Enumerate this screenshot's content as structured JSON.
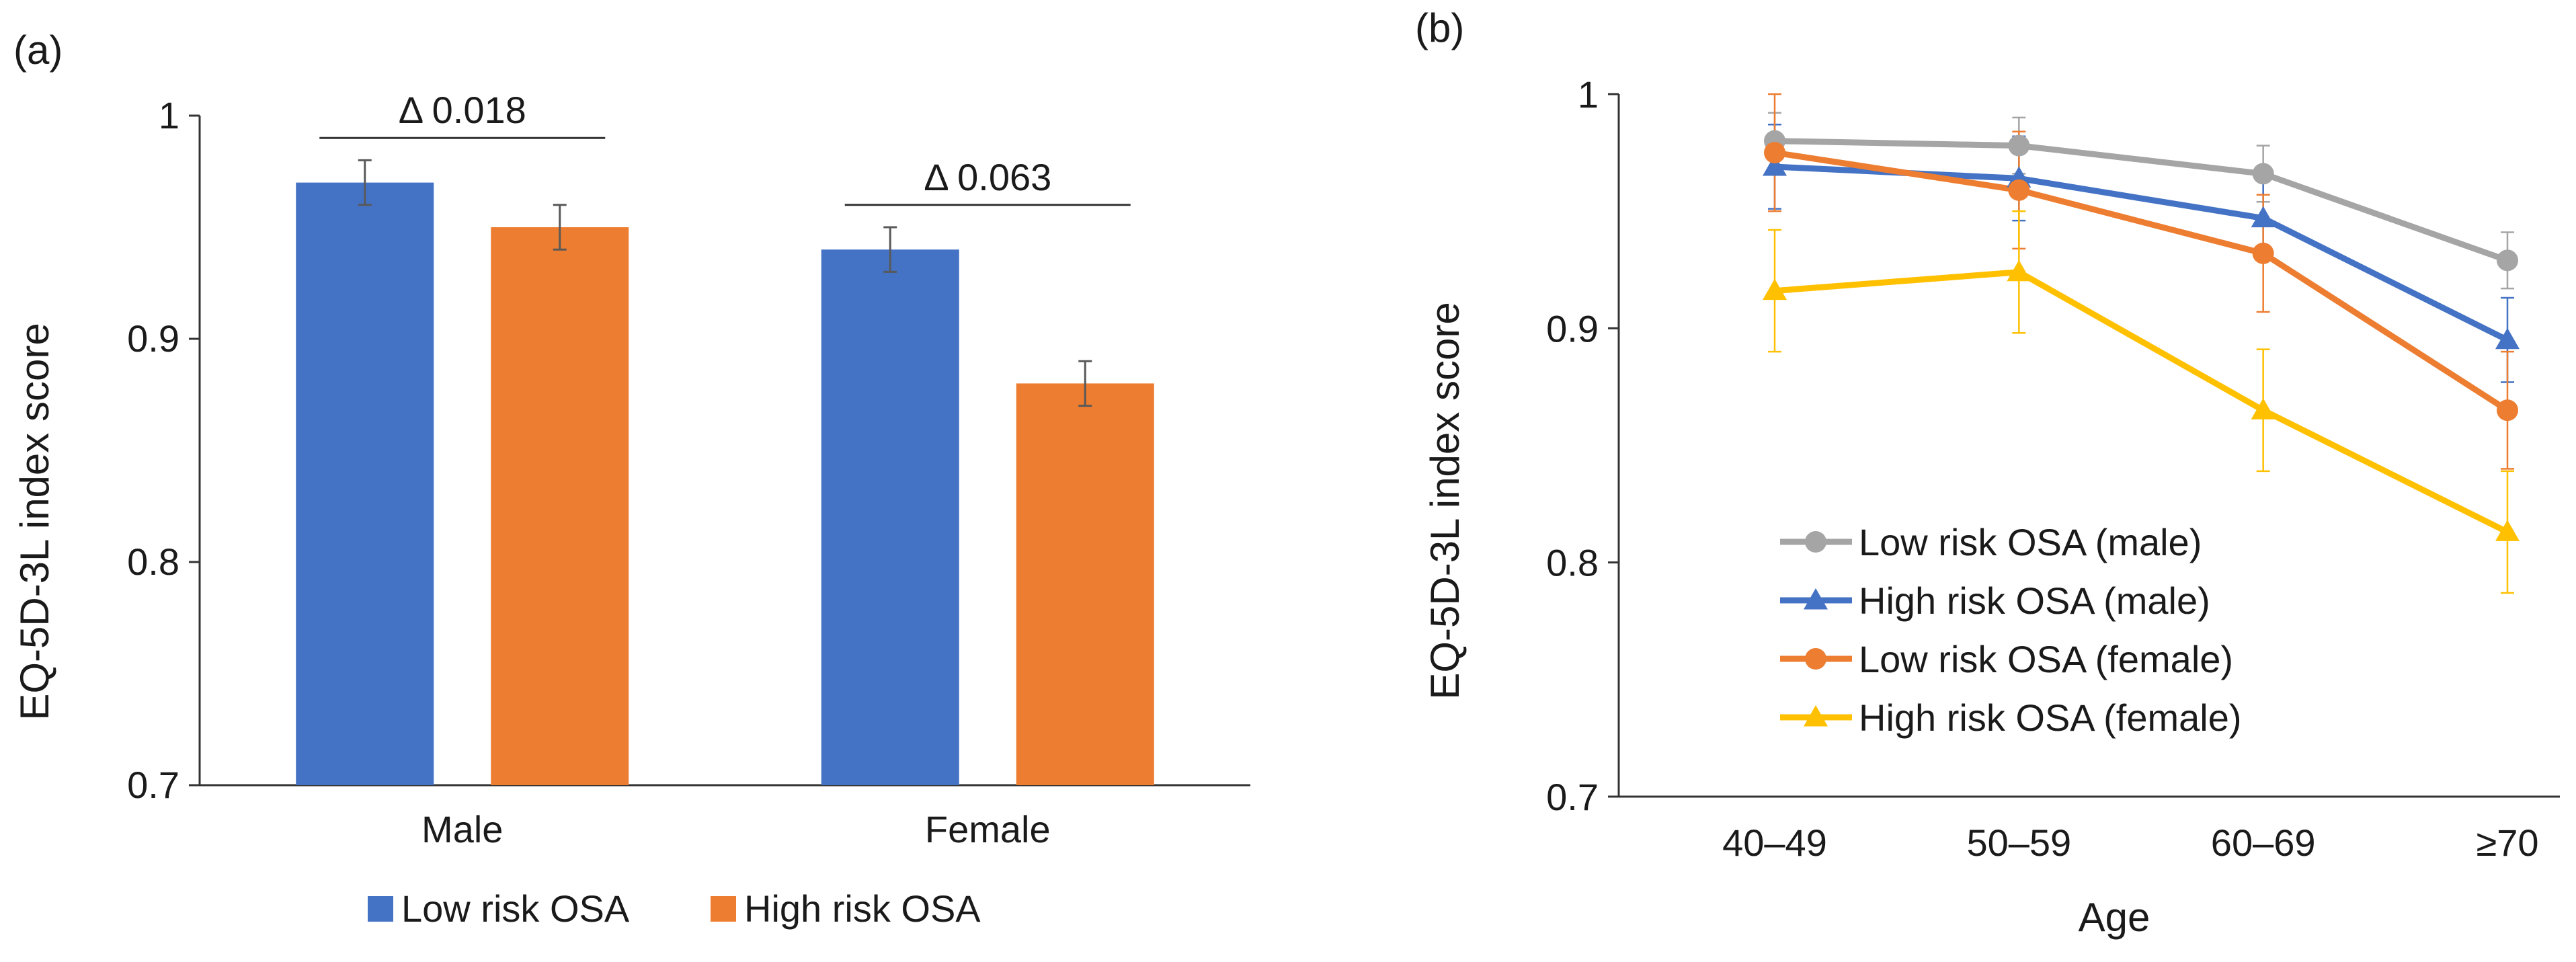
{
  "colors": {
    "low_risk": "#4472C4",
    "high_risk": "#ED7D31",
    "low_male": "#A5A5A5",
    "high_male": "#4472C4",
    "low_female": "#ED7D31",
    "high_female": "#FFC000",
    "axis": "#333333",
    "errorbar": "#595959"
  },
  "chart_data": [
    {
      "panel": "(a)",
      "type": "bar",
      "categories": [
        "Male",
        "Female"
      ],
      "series": [
        {
          "name": "Low risk OSA",
          "color_key": "low_risk",
          "values": [
            0.97,
            0.94
          ],
          "errors": [
            0.01,
            0.01
          ]
        },
        {
          "name": "High risk OSA",
          "color_key": "high_risk",
          "values": [
            0.95,
            0.88
          ],
          "errors": [
            0.01,
            0.01
          ]
        }
      ],
      "annotations": [
        {
          "category": "Male",
          "label": "Δ 0.018",
          "value_level": 0.99
        },
        {
          "category": "Female",
          "label": "Δ 0.063",
          "value_level": 0.96
        }
      ],
      "ylabel": "EQ-5D-3L index score",
      "xlabel": "",
      "ylim": [
        0.7,
        1.0
      ],
      "yticks": [
        "0.7",
        "0.8",
        "0.9",
        "1"
      ],
      "legend": "bottom",
      "grid": false
    },
    {
      "panel": "(b)",
      "type": "line",
      "categories": [
        "40–49",
        "50–59",
        "60–69",
        "≥70"
      ],
      "series": [
        {
          "name": "Low risk OSA (male)",
          "color_key": "low_male",
          "marker": "circle",
          "values": [
            0.98,
            0.978,
            0.966,
            0.929
          ],
          "errors": [
            0.012,
            0.012,
            0.012,
            0.012
          ]
        },
        {
          "name": "High risk OSA (male)",
          "color_key": "high_male",
          "marker": "triangle",
          "values": [
            0.969,
            0.964,
            0.947,
            0.895
          ],
          "errors": [
            0.018,
            0.018,
            0.018,
            0.018
          ]
        },
        {
          "name": "Low risk OSA (female)",
          "color_key": "low_female",
          "marker": "circle",
          "values": [
            0.975,
            0.959,
            0.932,
            0.865
          ],
          "errors": [
            0.025,
            0.025,
            0.025,
            0.025
          ]
        },
        {
          "name": "High risk OSA (female)",
          "color_key": "high_female",
          "marker": "triangle",
          "values": [
            0.916,
            0.924,
            0.865,
            0.813
          ],
          "errors": [
            0.026,
            0.026,
            0.026,
            0.026
          ]
        }
      ],
      "ylabel": "EQ-5D-3L index score",
      "xlabel": "Age",
      "ylim": [
        0.7,
        1.0
      ],
      "yticks": [
        "0.7",
        "0.8",
        "0.9",
        "1"
      ],
      "legend": "inside-lower-left",
      "grid": false
    }
  ]
}
